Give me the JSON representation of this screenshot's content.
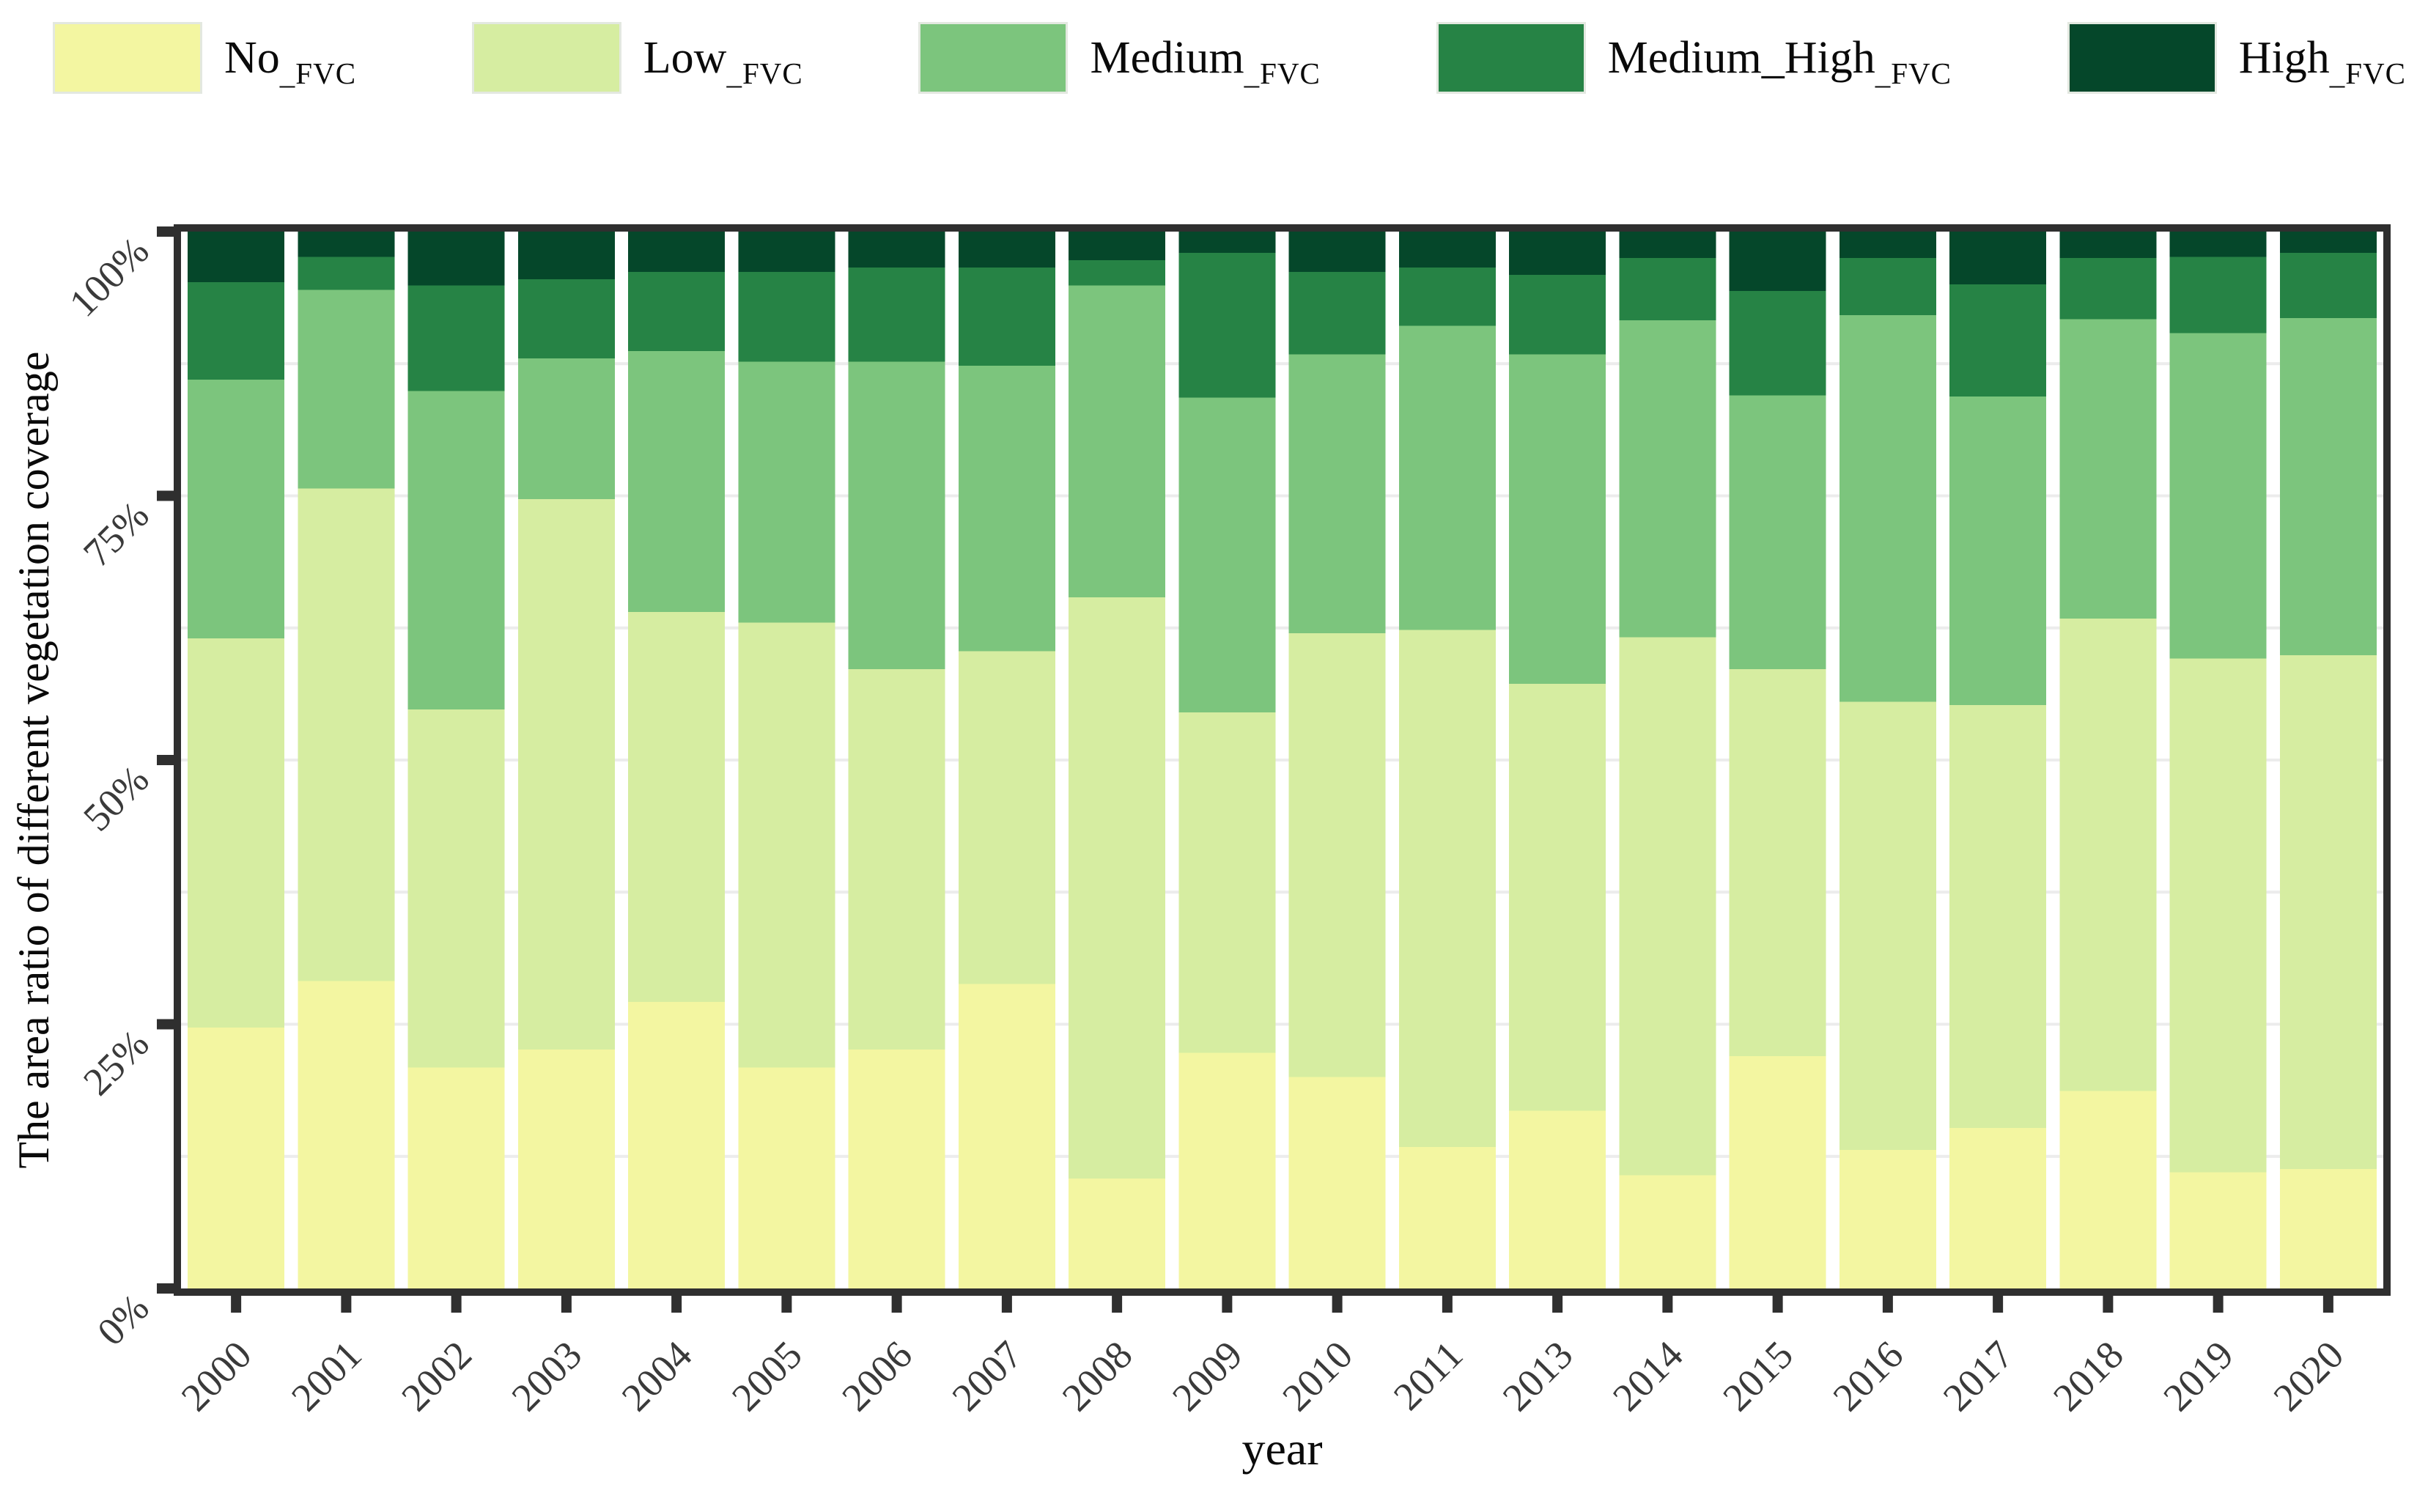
{
  "figure": {
    "background": "#ffffff",
    "axis_color": "#2f2f2f",
    "grid_color": "#ececec",
    "tick_label_color": "#3a3a3a",
    "title_color": "#0a0a0a"
  },
  "legend": {
    "position": "top",
    "items": [
      {
        "main": "No",
        "sub": "_FVC",
        "color": "#f3f6a1"
      },
      {
        "main": "Low",
        "sub": "_FVC",
        "color": "#d6eda1"
      },
      {
        "main": "Medium",
        "sub": "_FVC",
        "color": "#7cc57d"
      },
      {
        "main": "Medium_High",
        "sub": "_FVC",
        "color": "#268345"
      },
      {
        "main": "High",
        "sub": "_FVC",
        "color": "#05472a"
      }
    ]
  },
  "chart_data": {
    "type": "bar",
    "stacked": true,
    "unit": "percent",
    "title": "",
    "xlabel": "year",
    "ylabel": "The area ratio of different vegetation coverage",
    "ylim": [
      0,
      100
    ],
    "grid": {
      "orientation": "horizontal",
      "interval": 12.5
    },
    "legend_position": "top",
    "categories": [
      "2000",
      "2001",
      "2002",
      "2003",
      "2004",
      "2005",
      "2006",
      "2007",
      "2008",
      "2009",
      "2010",
      "2011",
      "2013",
      "2014",
      "2015",
      "2016",
      "2017",
      "2018",
      "2019",
      "2020"
    ],
    "yticks": [
      {
        "value": 0,
        "label": "0%"
      },
      {
        "value": 25,
        "label": "25%"
      },
      {
        "value": 50,
        "label": "50%"
      },
      {
        "value": 75,
        "label": "75%"
      },
      {
        "value": 100,
        "label": "100%"
      }
    ],
    "series": [
      {
        "name": "No_FVC",
        "color": "#f3f6a1",
        "values": [
          24.7,
          29.1,
          20.9,
          22.6,
          27.1,
          20.9,
          22.6,
          28.8,
          10.4,
          22.3,
          20.0,
          13.4,
          16.8,
          10.7,
          22.0,
          13.1,
          15.2,
          18.7,
          11.0,
          11.3
        ]
      },
      {
        "name": "Low_FVC",
        "color": "#d6eda1",
        "values": [
          36.8,
          46.6,
          33.9,
          52.1,
          36.9,
          42.1,
          36.0,
          31.5,
          55.0,
          32.2,
          42.0,
          48.9,
          40.4,
          50.9,
          36.6,
          42.4,
          40.0,
          44.7,
          48.6,
          48.6
        ]
      },
      {
        "name": "Medium_FVC",
        "color": "#7cc57d",
        "values": [
          24.5,
          18.8,
          30.1,
          13.3,
          24.7,
          24.7,
          29.1,
          27.0,
          29.5,
          29.8,
          26.4,
          28.8,
          31.2,
          30.0,
          25.9,
          36.6,
          29.2,
          28.3,
          30.8,
          31.9
        ]
      },
      {
        "name": "Medium_High_FVC",
        "color": "#268345",
        "values": [
          9.2,
          3.1,
          10.0,
          7.5,
          7.5,
          8.5,
          8.9,
          9.3,
          2.4,
          13.7,
          7.8,
          5.5,
          7.5,
          5.9,
          9.9,
          5.4,
          10.6,
          5.8,
          7.2,
          6.2
        ]
      },
      {
        "name": "High_FVC",
        "color": "#05472a",
        "values": [
          4.8,
          2.4,
          5.1,
          4.5,
          3.8,
          3.8,
          3.4,
          3.4,
          2.7,
          2.0,
          3.8,
          3.4,
          4.1,
          2.5,
          5.6,
          2.5,
          5.0,
          2.5,
          2.4,
          2.0
        ]
      }
    ]
  }
}
